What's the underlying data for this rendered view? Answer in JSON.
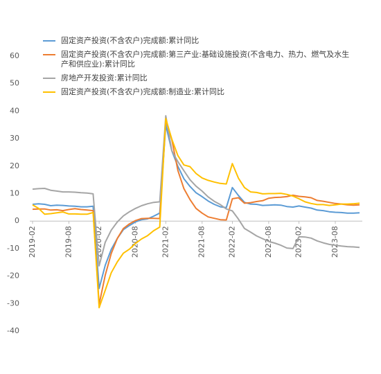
{
  "chart_data": {
    "type": "line",
    "categories": [
      "2019-02",
      null,
      null,
      null,
      null,
      null,
      "2019-08",
      null,
      null,
      null,
      null,
      "2020-02",
      null,
      null,
      null,
      null,
      null,
      "2020-08",
      null,
      null,
      null,
      null,
      "2021-02",
      null,
      null,
      null,
      null,
      null,
      "2021-08",
      null,
      null,
      null,
      null,
      "2022-02",
      null,
      null,
      null,
      null,
      null,
      "2022-08",
      null,
      null,
      null,
      null,
      "2023-02",
      null,
      null,
      null,
      null,
      null,
      "2023-08",
      null,
      null,
      null,
      null
    ],
    "series": [
      {
        "name": "固定资产投资(不含农户)完成额:累计同比",
        "color": "#5b9bd5",
        "values": [
          6.1,
          6.3,
          6.1,
          5.6,
          5.8,
          5.7,
          5.5,
          5.4,
          5.2,
          5.2,
          5.4,
          -24.5,
          -16.1,
          -10.3,
          -6.3,
          -3.1,
          -1.6,
          -0.3,
          0.5,
          0.8,
          1.8,
          2.9,
          35.0,
          25.6,
          19.9,
          15.4,
          12.6,
          10.3,
          8.9,
          7.3,
          6.1,
          5.2,
          4.9,
          12.2,
          9.3,
          6.8,
          6.2,
          6.1,
          5.7,
          5.8,
          5.9,
          5.8,
          5.3,
          5.1,
          5.5,
          5.1,
          4.7,
          4.0,
          3.8,
          3.4,
          3.2,
          3.1,
          2.9,
          2.9,
          3.0
        ]
      },
      {
        "name": "固定资产投资(不含农户)完成额:第三产业:基础设施投资(不含电力、热力、燃气及水生产和供应业):累计同比",
        "color": "#ed7d31",
        "values": [
          4.3,
          4.4,
          4.4,
          4.0,
          4.1,
          3.8,
          4.2,
          4.5,
          4.2,
          4.0,
          3.8,
          -30.3,
          -19.7,
          -11.8,
          -6.3,
          -2.7,
          -1.0,
          0.2,
          0.9,
          1.0,
          1.0,
          0.9,
          36.6,
          29.7,
          18.4,
          11.8,
          7.8,
          4.6,
          2.9,
          1.5,
          1.0,
          0.5,
          0.4,
          8.1,
          8.5,
          6.5,
          6.7,
          7.1,
          7.4,
          8.3,
          8.6,
          8.7,
          8.9,
          9.4,
          9.0,
          8.8,
          8.5,
          7.5,
          7.2,
          6.8,
          6.4,
          6.2,
          5.9,
          5.8,
          5.9
        ]
      },
      {
        "name": "房地产开发投资:累计同比",
        "color": "#a5a5a5",
        "values": [
          11.6,
          11.8,
          11.9,
          11.2,
          10.9,
          10.6,
          10.6,
          10.5,
          10.3,
          10.2,
          9.9,
          -16.3,
          -7.7,
          -3.3,
          -0.3,
          1.9,
          3.4,
          4.6,
          5.6,
          6.3,
          6.8,
          7.0,
          38.3,
          25.6,
          21.6,
          18.3,
          15.0,
          12.7,
          10.9,
          8.8,
          7.2,
          6.0,
          4.4,
          3.7,
          0.7,
          -2.7,
          -4.0,
          -5.4,
          -6.4,
          -7.4,
          -8.0,
          -8.8,
          -9.8,
          -10.0,
          -5.7,
          -5.8,
          -6.2,
          -7.2,
          -7.9,
          -8.5,
          -8.8,
          -9.1,
          -9.3,
          -9.4,
          -9.6
        ]
      },
      {
        "name": "固定资产投资(不含农户)完成额:制造业:累计同比",
        "color": "#ffc000",
        "values": [
          5.9,
          4.6,
          2.5,
          2.7,
          3.0,
          3.3,
          2.6,
          2.6,
          2.5,
          2.5,
          3.1,
          -31.5,
          -25.2,
          -18.8,
          -14.8,
          -11.7,
          -10.2,
          -8.1,
          -6.5,
          -5.3,
          -3.5,
          -2.2,
          37.3,
          29.8,
          23.8,
          20.4,
          19.8,
          17.3,
          15.7,
          14.8,
          14.2,
          13.7,
          13.5,
          20.9,
          15.6,
          12.2,
          10.6,
          10.4,
          9.9,
          10.0,
          10.0,
          10.1,
          9.7,
          9.1,
          8.1,
          7.0,
          6.4,
          6.0,
          6.0,
          5.7,
          5.9,
          6.2,
          6.2,
          6.3,
          6.5
        ]
      }
    ],
    "ylim": [
      -40,
      60
    ],
    "yticks": [
      -40,
      -30,
      -20,
      -10,
      0,
      10,
      20,
      30,
      40,
      50,
      60
    ],
    "grid": false
  }
}
